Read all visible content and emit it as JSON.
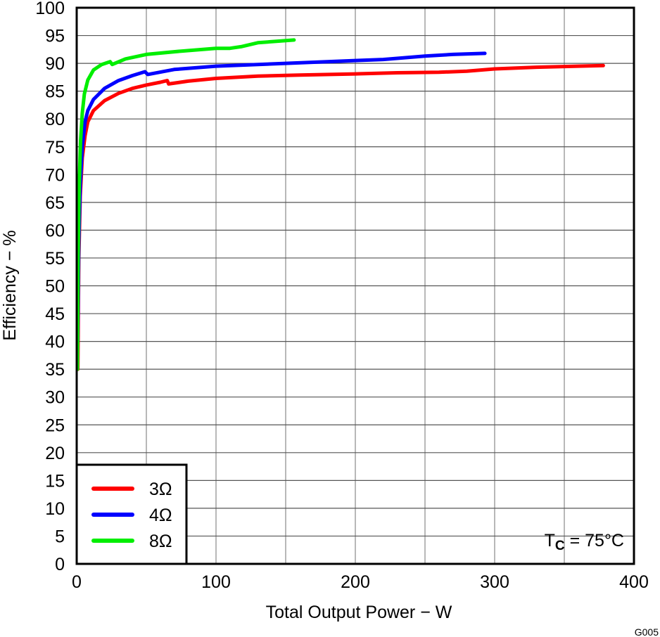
{
  "chart_data": {
    "type": "line",
    "xlabel": "Total Output Power − W",
    "ylabel": "Efficiency − %",
    "xlim": [
      0,
      400
    ],
    "ylim": [
      0,
      100
    ],
    "x_ticks": [
      0,
      100,
      200,
      300,
      400
    ],
    "y_ticks": [
      0,
      5,
      10,
      15,
      20,
      25,
      30,
      35,
      40,
      45,
      50,
      55,
      60,
      65,
      70,
      75,
      80,
      85,
      90,
      95,
      100
    ],
    "grid": true,
    "legend_position": "bottom-left",
    "annotation": {
      "main": "T",
      "sub": "C",
      "rest": " = 75°C"
    },
    "figure_id": "G005",
    "series": [
      {
        "name": "3Ω",
        "color": "#ff0000",
        "points": [
          [
            0.8,
            35
          ],
          [
            1.5,
            55
          ],
          [
            2.5,
            66
          ],
          [
            4,
            73
          ],
          [
            6,
            77
          ],
          [
            8,
            79.5
          ],
          [
            12,
            81.5
          ],
          [
            20,
            83.3
          ],
          [
            30,
            84.6
          ],
          [
            40,
            85.5
          ],
          [
            50,
            86.1
          ],
          [
            60,
            86.6
          ],
          [
            65,
            86.9
          ],
          [
            66,
            86.3
          ],
          [
            80,
            86.8
          ],
          [
            100,
            87.3
          ],
          [
            130,
            87.7
          ],
          [
            160,
            87.9
          ],
          [
            200,
            88.1
          ],
          [
            230,
            88.3
          ],
          [
            260,
            88.4
          ],
          [
            280,
            88.6
          ],
          [
            300,
            89.0
          ],
          [
            330,
            89.3
          ],
          [
            360,
            89.5
          ],
          [
            378,
            89.6
          ]
        ]
      },
      {
        "name": "4Ω",
        "color": "#0000ff",
        "points": [
          [
            0.7,
            40
          ],
          [
            1.5,
            58
          ],
          [
            2.5,
            68
          ],
          [
            4,
            75
          ],
          [
            6,
            79.5
          ],
          [
            8,
            81.5
          ],
          [
            12,
            83.5
          ],
          [
            20,
            85.5
          ],
          [
            30,
            86.9
          ],
          [
            40,
            87.8
          ],
          [
            49,
            88.5
          ],
          [
            51,
            88
          ],
          [
            70,
            88.9
          ],
          [
            100,
            89.5
          ],
          [
            150,
            90
          ],
          [
            200,
            90.5
          ],
          [
            220,
            90.7
          ],
          [
            250,
            91.3
          ],
          [
            270,
            91.6
          ],
          [
            293,
            91.8
          ]
        ]
      },
      {
        "name": "8Ω",
        "color": "#00ee00",
        "points": [
          [
            0.5,
            35
          ],
          [
            1,
            55
          ],
          [
            1.8,
            68
          ],
          [
            2.8,
            76
          ],
          [
            4,
            81
          ],
          [
            5.5,
            84.5
          ],
          [
            8,
            87
          ],
          [
            12,
            88.8
          ],
          [
            18,
            89.8
          ],
          [
            24,
            90.3
          ],
          [
            25.5,
            89.8
          ],
          [
            35,
            90.8
          ],
          [
            50,
            91.6
          ],
          [
            75,
            92.2
          ],
          [
            100,
            92.7
          ],
          [
            110,
            92.7
          ],
          [
            118,
            93
          ],
          [
            130,
            93.7
          ],
          [
            145,
            94
          ],
          [
            156,
            94.2
          ]
        ]
      }
    ]
  }
}
